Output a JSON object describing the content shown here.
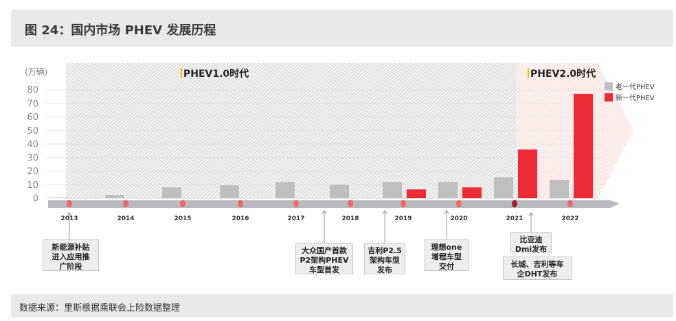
{
  "page_title": "图 24：国内市场 PHEV 发展历程",
  "source": "数据来源：里斯根据乘联会上险数据整理",
  "chart_data": {
    "type": "bar",
    "ylabel": "(万辆)",
    "ylim": [
      0,
      80
    ],
    "yticks": [
      0,
      10,
      20,
      30,
      40,
      50,
      60,
      70,
      80
    ],
    "categories": [
      "2013",
      "2014",
      "2015",
      "2016",
      "2017",
      "2018",
      "2019",
      "2020",
      "2021",
      "2022"
    ],
    "series": [
      {
        "name": "老一代PHEV",
        "color": "#bfbfbf",
        "values": [
          0.5,
          2.5,
          8,
          9.5,
          12,
          10,
          12,
          12,
          15.5,
          13.5
        ]
      },
      {
        "name": "新一代PHEV",
        "color": "#ee2a37",
        "values": [
          null,
          null,
          null,
          null,
          null,
          null,
          6.5,
          8,
          36,
          77
        ]
      }
    ],
    "legend_position": "top-right",
    "eras": [
      {
        "label": "PHEV1.0时代"
      },
      {
        "label": "PHEV2.0时代"
      }
    ],
    "events": [
      {
        "year": "2013",
        "text": "新能源补贴\n进入应用推\n广阶段"
      },
      {
        "year": "2018",
        "text": "大众国产首款\nP2架构PHEV\n车型首发"
      },
      {
        "year": "2019",
        "text": "吉利P2.5\n架构车型\n发布"
      },
      {
        "year": "2020",
        "text": "理想one\n增程车型\n交付"
      },
      {
        "year": "2021",
        "text": "比亚迪\nDmi发布"
      },
      {
        "year": "2022",
        "text": "长城、吉利等车\n企DHT发布"
      }
    ]
  }
}
